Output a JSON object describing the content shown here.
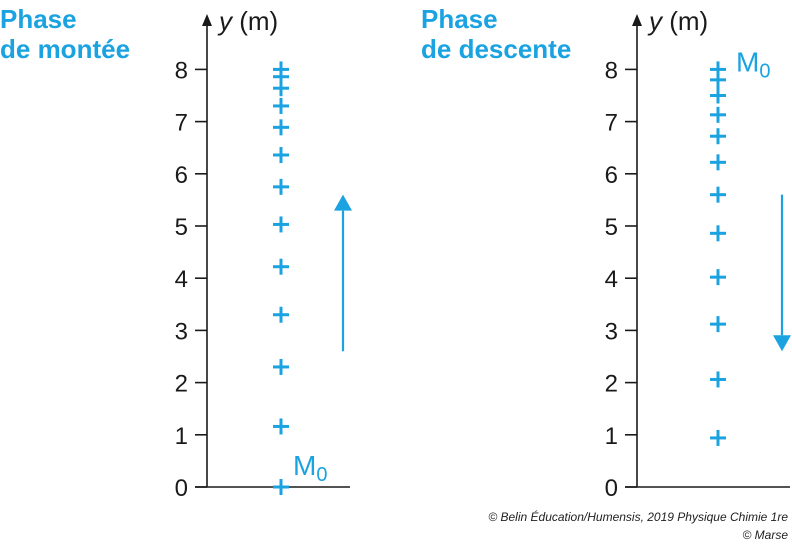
{
  "headings": {
    "left": [
      "Phase",
      "de montée"
    ],
    "right": [
      "Phase",
      "de descente"
    ]
  },
  "colors": {
    "accent": "#1aa3e0",
    "axis": "#1a1a1a"
  },
  "axis": {
    "var": "y",
    "unit": " (m)",
    "ticks": [
      "0",
      "1",
      "2",
      "3",
      "4",
      "5",
      "6",
      "7",
      "8"
    ],
    "range": [
      0,
      8
    ]
  },
  "point_label": {
    "letter": "M",
    "subscript": "0"
  },
  "panels": [
    {
      "name": "montee",
      "positions": [
        0,
        1.16,
        2.3,
        3.3,
        4.22,
        5.03,
        5.75,
        6.36,
        6.89,
        7.3,
        7.64,
        7.86,
        8.0
      ],
      "marker_index": 0,
      "arrow": {
        "from": 2.6,
        "to": 5.6,
        "direction": "up"
      }
    },
    {
      "name": "descente",
      "positions": [
        8.0,
        7.8,
        7.5,
        7.13,
        6.72,
        6.22,
        5.6,
        4.86,
        4.02,
        3.12,
        2.06,
        0.94
      ],
      "marker_index": 0,
      "arrow": {
        "from": 5.6,
        "to": 2.6,
        "direction": "down"
      }
    }
  ],
  "credits": [
    "© Belin Éducation/Humensis, 2019 Physique Chimie 1re",
    "© Marse"
  ]
}
